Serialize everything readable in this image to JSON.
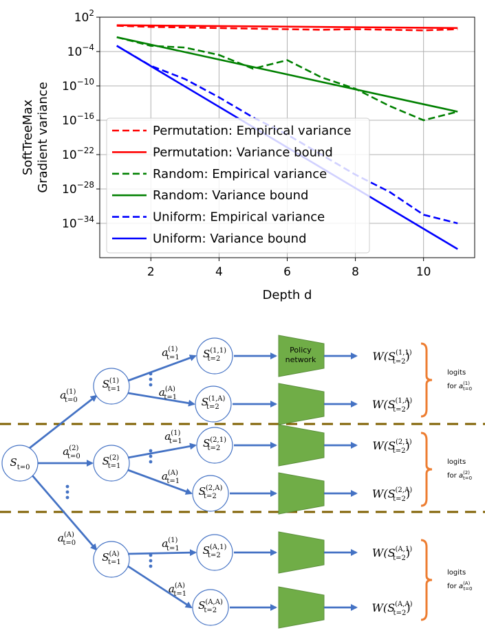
{
  "chart_data": {
    "type": "line",
    "xlabel": "Depth d",
    "ylabel_lines": [
      "SoftTreeMax",
      "Gradient variance"
    ],
    "xlim": [
      0.5,
      11.5
    ],
    "ylim_log10": [
      -40,
      2
    ],
    "log_y": true,
    "grid": true,
    "legend_position": "lower-left",
    "x_ticks": [
      2,
      4,
      6,
      8,
      10
    ],
    "x_tick_labels": [
      "2",
      "4",
      "6",
      "8",
      "10"
    ],
    "y_ticks_log10": [
      2,
      -4,
      -10,
      -16,
      -22,
      -28,
      -34
    ],
    "y_tick_mantissa": "10",
    "y_tick_exponents": [
      "2",
      "−4",
      "−10",
      "−16",
      "−22",
      "−28",
      "−34"
    ],
    "series": [
      {
        "name": "Permutation: Empirical variance",
        "color": "#ff0000",
        "dashed": true,
        "x": [
          1,
          2,
          3,
          4,
          5,
          6,
          7,
          8,
          9,
          10,
          11
        ],
        "log10_y": [
          0.5,
          0.3,
          0.2,
          0.1,
          0.0,
          -0.1,
          -0.2,
          -0.1,
          -0.2,
          -0.3,
          -0.1
        ]
      },
      {
        "name": "Permutation: Variance bound",
        "color": "#ff0000",
        "dashed": false,
        "x": [
          1,
          11
        ],
        "log10_y": [
          0.6,
          0.1
        ]
      },
      {
        "name": "Random: Empirical variance",
        "color": "#008000",
        "dashed": true,
        "x": [
          1,
          2,
          3,
          4,
          5,
          6,
          7,
          8,
          9,
          10,
          11
        ],
        "log10_y": [
          -1.5,
          -3.0,
          -3.3,
          -4.6,
          -7.0,
          -5.5,
          -8.5,
          -10.5,
          -13.5,
          -16.0,
          -14.5
        ]
      },
      {
        "name": "Random: Variance bound",
        "color": "#008000",
        "dashed": false,
        "x": [
          1,
          11
        ],
        "log10_y": [
          -1.5,
          -14.5
        ]
      },
      {
        "name": "Uniform: Empirical variance",
        "color": "#0000ff",
        "dashed": true,
        "x": [
          1,
          2,
          3,
          4,
          5,
          6,
          7,
          8,
          9,
          10,
          11
        ],
        "log10_y": [
          -3.0,
          -6.5,
          -8.8,
          -12.0,
          -15.5,
          -18.5,
          -22.0,
          -25.5,
          -28.5,
          -32.5,
          -34.0
        ]
      },
      {
        "name": "Uniform: Variance bound",
        "color": "#0000ff",
        "dashed": false,
        "x": [
          1,
          11
        ],
        "log10_y": [
          -3.0,
          -38.5
        ]
      }
    ]
  },
  "diagram": {
    "root": {
      "main": "S",
      "sub": "t=0"
    },
    "level1_nodes": [
      {
        "main": "S",
        "sub": "t=1",
        "sup": "(1)"
      },
      {
        "main": "S",
        "sub": "t=1",
        "sup": "(2)"
      },
      {
        "main": "S",
        "sub": "t=1",
        "sup": "(A)"
      }
    ],
    "level1_edges": [
      {
        "main": "a",
        "sub": "t=0",
        "sup": "(1)"
      },
      {
        "main": "a",
        "sub": "t=0",
        "sup": "(2)"
      },
      {
        "main": "a",
        "sub": "t=0",
        "sup": "(A)"
      }
    ],
    "level2_edges": [
      {
        "main": "a",
        "sub": "t=1",
        "sup": "(1)"
      },
      {
        "main": "a",
        "sub": "t=1",
        "sup": "(A)"
      },
      {
        "main": "a",
        "sub": "t=1",
        "sup": "(1)"
      },
      {
        "main": "a",
        "sub": "t=1",
        "sup": "(A)"
      },
      {
        "main": "a",
        "sub": "t=1",
        "sup": "(1)"
      },
      {
        "main": "a",
        "sub": "t=1",
        "sup": "(A)"
      }
    ],
    "level2_nodes": [
      {
        "main": "S",
        "sub": "t=2",
        "sup": "(1,1)"
      },
      {
        "main": "S",
        "sub": "t=2",
        "sup": "(1,A)"
      },
      {
        "main": "S",
        "sub": "t=2",
        "sup": "(2,1)"
      },
      {
        "main": "S",
        "sub": "t=2",
        "sup": "(2,A)"
      },
      {
        "main": "S",
        "sub": "t=2",
        "sup": "(A,1)"
      },
      {
        "main": "S",
        "sub": "t=2",
        "sup": "(A,A)"
      }
    ],
    "policy_label_lines": [
      "Policy",
      "network"
    ],
    "outputs": [
      {
        "sup": "(1,1)"
      },
      {
        "sup": "(1,A)"
      },
      {
        "sup": "(2,1)"
      },
      {
        "sup": "(2,A)"
      },
      {
        "sup": "(A,1)"
      },
      {
        "sup": "(A,A)"
      }
    ],
    "output_prefix": "W(S",
    "output_sub": "t=2",
    "logits": [
      {
        "line1": "logits",
        "line2": "for",
        "a_sup": "(1)",
        "a_sub": "t=0"
      },
      {
        "line1": "logits",
        "line2": "for",
        "a_sup": "(2)",
        "a_sub": "t=0"
      },
      {
        "line1": "logits",
        "line2": "for",
        "a_sup": "(A)",
        "a_sub": "t=0"
      }
    ],
    "colors": {
      "node": "#4472c4",
      "edge": "#4472c4",
      "policy": "#70ad47",
      "brace": "#ed7d31",
      "separator": "#7f6000"
    }
  }
}
